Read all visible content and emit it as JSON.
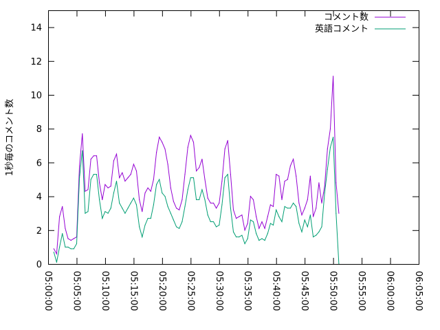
{
  "chart_data": {
    "type": "line",
    "title": "",
    "xlabel": "",
    "ylabel": "1秒毎のコメント数",
    "ylim": [
      0,
      15
    ],
    "yticks": [
      0,
      2,
      4,
      6,
      8,
      10,
      12,
      14
    ],
    "ytick_labels": [
      "0",
      "2",
      "4",
      "6",
      "8",
      "10",
      "12",
      "14"
    ],
    "xlim_minutes": [
      0,
      65
    ],
    "xtick_minutes": [
      0,
      5,
      10,
      15,
      20,
      25,
      30,
      35,
      40,
      45,
      50,
      55,
      60,
      65
    ],
    "xtick_labels": [
      "05:00:00",
      "05:05:00",
      "05:10:00",
      "05:15:00",
      "05:20:00",
      "05:25:00",
      "05:30:00",
      "05:35:00",
      "05:40:00",
      "05:45:00",
      "05:50:00",
      "05:55:00",
      "06:00:00",
      "06:05:00"
    ],
    "grid": false,
    "legend_position": "top-right",
    "series": [
      {
        "name": "コメント数",
        "color": "#9400d3",
        "points": [
          [
            1.0,
            0.9
          ],
          [
            1.5,
            0.6
          ],
          [
            2.0,
            2.8
          ],
          [
            2.5,
            3.4
          ],
          [
            3.0,
            2.1
          ],
          [
            3.5,
            1.5
          ],
          [
            4.0,
            1.4
          ],
          [
            4.5,
            1.5
          ],
          [
            5.0,
            1.6
          ],
          [
            5.5,
            5.8
          ],
          [
            6.0,
            7.7
          ],
          [
            6.5,
            4.3
          ],
          [
            7.0,
            4.4
          ],
          [
            7.5,
            6.2
          ],
          [
            8.0,
            6.4
          ],
          [
            8.5,
            6.4
          ],
          [
            9.0,
            4.8
          ],
          [
            9.5,
            3.8
          ],
          [
            10.0,
            4.7
          ],
          [
            10.5,
            4.5
          ],
          [
            11.0,
            4.6
          ],
          [
            11.5,
            6.1
          ],
          [
            12.0,
            6.5
          ],
          [
            12.5,
            5.1
          ],
          [
            13.0,
            5.4
          ],
          [
            13.5,
            4.9
          ],
          [
            14.0,
            5.1
          ],
          [
            14.5,
            5.3
          ],
          [
            15.0,
            5.9
          ],
          [
            15.5,
            5.5
          ],
          [
            16.0,
            3.8
          ],
          [
            16.5,
            3.1
          ],
          [
            17.0,
            4.2
          ],
          [
            17.5,
            4.5
          ],
          [
            18.0,
            4.3
          ],
          [
            18.5,
            5.0
          ],
          [
            19.0,
            6.6
          ],
          [
            19.5,
            7.5
          ],
          [
            20.0,
            7.2
          ],
          [
            20.5,
            6.8
          ],
          [
            21.0,
            5.9
          ],
          [
            21.5,
            4.5
          ],
          [
            22.0,
            3.7
          ],
          [
            22.5,
            3.3
          ],
          [
            23.0,
            3.2
          ],
          [
            23.5,
            3.8
          ],
          [
            24.0,
            5.3
          ],
          [
            24.5,
            6.9
          ],
          [
            25.0,
            7.6
          ],
          [
            25.5,
            7.2
          ],
          [
            26.0,
            5.5
          ],
          [
            26.5,
            5.7
          ],
          [
            27.0,
            6.2
          ],
          [
            27.5,
            5.0
          ],
          [
            28.0,
            3.9
          ],
          [
            28.5,
            3.6
          ],
          [
            29.0,
            3.6
          ],
          [
            29.5,
            3.3
          ],
          [
            30.0,
            3.6
          ],
          [
            30.5,
            4.9
          ],
          [
            31.0,
            6.8
          ],
          [
            31.5,
            7.3
          ],
          [
            32.0,
            5.3
          ],
          [
            32.5,
            3.2
          ],
          [
            33.0,
            2.7
          ],
          [
            33.5,
            2.8
          ],
          [
            34.0,
            2.9
          ],
          [
            34.5,
            2.0
          ],
          [
            35.0,
            2.4
          ],
          [
            35.5,
            4.0
          ],
          [
            36.0,
            3.8
          ],
          [
            36.5,
            2.8
          ],
          [
            37.0,
            2.1
          ],
          [
            37.5,
            2.5
          ],
          [
            38.0,
            2.1
          ],
          [
            38.5,
            2.8
          ],
          [
            39.0,
            3.5
          ],
          [
            39.5,
            3.4
          ],
          [
            40.0,
            5.3
          ],
          [
            40.5,
            5.2
          ],
          [
            41.0,
            3.8
          ],
          [
            41.5,
            4.9
          ],
          [
            42.0,
            5.0
          ],
          [
            42.5,
            5.8
          ],
          [
            43.0,
            6.2
          ],
          [
            43.5,
            5.2
          ],
          [
            44.0,
            3.6
          ],
          [
            44.5,
            2.9
          ],
          [
            45.0,
            3.3
          ],
          [
            45.5,
            3.8
          ],
          [
            46.0,
            5.2
          ],
          [
            46.5,
            2.8
          ],
          [
            47.0,
            3.3
          ],
          [
            47.5,
            4.8
          ],
          [
            48.0,
            3.6
          ],
          [
            48.5,
            4.6
          ],
          [
            49.0,
            6.8
          ],
          [
            49.5,
            8.0
          ],
          [
            50.0,
            11.1
          ],
          [
            50.5,
            4.8
          ],
          [
            51.0,
            3.0
          ]
        ]
      },
      {
        "name": "英語コメント",
        "color": "#009e73",
        "points": [
          [
            1.0,
            0.7
          ],
          [
            1.5,
            0.1
          ],
          [
            2.0,
            1.0
          ],
          [
            2.5,
            1.8
          ],
          [
            3.0,
            1.0
          ],
          [
            3.5,
            1.0
          ],
          [
            4.0,
            0.9
          ],
          [
            4.5,
            0.9
          ],
          [
            5.0,
            1.2
          ],
          [
            5.5,
            5.1
          ],
          [
            6.0,
            6.7
          ],
          [
            6.5,
            3.0
          ],
          [
            7.0,
            3.1
          ],
          [
            7.5,
            5.0
          ],
          [
            8.0,
            5.3
          ],
          [
            8.5,
            5.3
          ],
          [
            9.0,
            3.8
          ],
          [
            9.5,
            2.7
          ],
          [
            10.0,
            3.1
          ],
          [
            10.5,
            3.0
          ],
          [
            11.0,
            3.3
          ],
          [
            11.5,
            4.2
          ],
          [
            12.0,
            4.9
          ],
          [
            12.5,
            3.6
          ],
          [
            13.0,
            3.3
          ],
          [
            13.5,
            3.0
          ],
          [
            14.0,
            3.3
          ],
          [
            14.5,
            3.6
          ],
          [
            15.0,
            3.9
          ],
          [
            15.5,
            3.5
          ],
          [
            16.0,
            2.2
          ],
          [
            16.5,
            1.6
          ],
          [
            17.0,
            2.3
          ],
          [
            17.5,
            2.7
          ],
          [
            18.0,
            2.7
          ],
          [
            18.5,
            3.5
          ],
          [
            19.0,
            4.7
          ],
          [
            19.5,
            5.0
          ],
          [
            20.0,
            4.2
          ],
          [
            20.5,
            4.0
          ],
          [
            21.0,
            3.4
          ],
          [
            21.5,
            3.0
          ],
          [
            22.0,
            2.6
          ],
          [
            22.5,
            2.2
          ],
          [
            23.0,
            2.1
          ],
          [
            23.5,
            2.5
          ],
          [
            24.0,
            3.4
          ],
          [
            24.5,
            4.4
          ],
          [
            25.0,
            5.1
          ],
          [
            25.5,
            5.1
          ],
          [
            26.0,
            3.8
          ],
          [
            26.5,
            3.8
          ],
          [
            27.0,
            4.4
          ],
          [
            27.5,
            3.8
          ],
          [
            28.0,
            2.9
          ],
          [
            28.5,
            2.5
          ],
          [
            29.0,
            2.5
          ],
          [
            29.5,
            2.2
          ],
          [
            30.0,
            2.3
          ],
          [
            30.5,
            3.5
          ],
          [
            31.0,
            5.1
          ],
          [
            31.5,
            5.3
          ],
          [
            32.0,
            3.3
          ],
          [
            32.5,
            1.9
          ],
          [
            33.0,
            1.6
          ],
          [
            33.5,
            1.6
          ],
          [
            34.0,
            1.7
          ],
          [
            34.5,
            1.2
          ],
          [
            35.0,
            1.5
          ],
          [
            35.5,
            2.6
          ],
          [
            36.0,
            2.5
          ],
          [
            36.5,
            1.8
          ],
          [
            37.0,
            1.4
          ],
          [
            37.5,
            1.5
          ],
          [
            38.0,
            1.4
          ],
          [
            38.5,
            1.8
          ],
          [
            39.0,
            2.4
          ],
          [
            39.5,
            2.3
          ],
          [
            40.0,
            3.2
          ],
          [
            40.5,
            2.8
          ],
          [
            41.0,
            2.5
          ],
          [
            41.5,
            3.4
          ],
          [
            42.0,
            3.3
          ],
          [
            42.5,
            3.3
          ],
          [
            43.0,
            3.6
          ],
          [
            43.5,
            3.4
          ],
          [
            44.0,
            2.4
          ],
          [
            44.5,
            1.9
          ],
          [
            45.0,
            2.6
          ],
          [
            45.5,
            2.2
          ],
          [
            46.0,
            2.9
          ],
          [
            46.5,
            1.6
          ],
          [
            47.0,
            1.7
          ],
          [
            47.5,
            1.9
          ],
          [
            48.0,
            2.2
          ],
          [
            48.5,
            4.2
          ],
          [
            49.0,
            5.6
          ],
          [
            49.5,
            6.9
          ],
          [
            50.0,
            7.5
          ],
          [
            50.5,
            3.0
          ],
          [
            51.0,
            0.0
          ]
        ]
      }
    ]
  }
}
